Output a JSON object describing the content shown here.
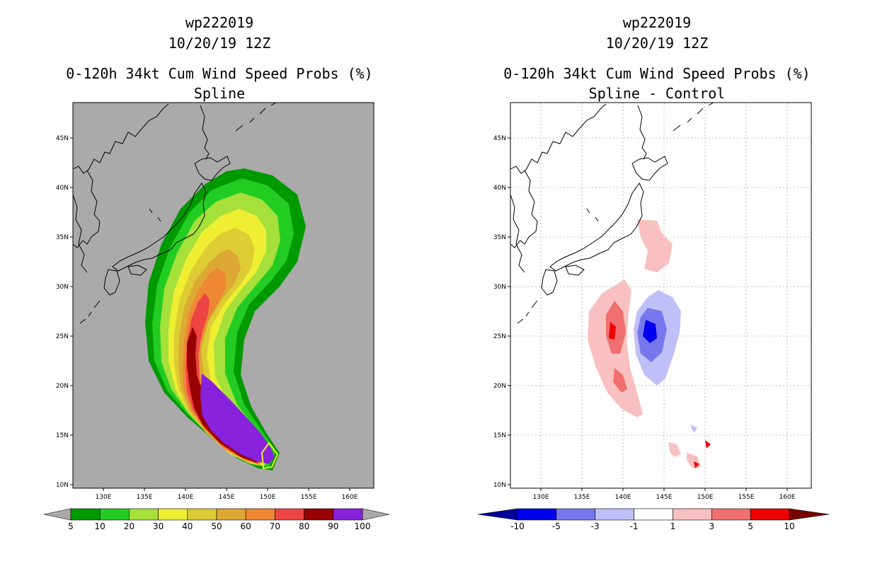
{
  "left_panel": {
    "title_line1": "wp222019",
    "title_line2": "10/20/19 12Z",
    "title_line3": "0-120h 34kt Cum Wind Speed Probs (%)",
    "title_line4": "Spline"
  },
  "right_panel": {
    "title_line1": "wp222019",
    "title_line2": "10/20/19 12Z",
    "title_line3": "0-120h 34kt Cum Wind Speed Probs (%)",
    "title_line4": "Spline - Control"
  },
  "axes": {
    "lat_labels": [
      "45N",
      "40N",
      "35N",
      "30N",
      "25N",
      "20N",
      "15N",
      "10N"
    ],
    "lon_labels": [
      "130E",
      "135E",
      "140E",
      "145E",
      "150E",
      "155E",
      "160E"
    ]
  },
  "left_colorbar": {
    "labels": [
      "5",
      "10",
      "20",
      "30",
      "40",
      "50",
      "60",
      "70",
      "80",
      "90",
      "100"
    ],
    "colors": [
      "#009900",
      "#22cc22",
      "#a6e03a",
      "#eeee33",
      "#ddcc33",
      "#dda833",
      "#ee8833",
      "#ee4444",
      "#990000",
      "#8822dd"
    ]
  },
  "right_colorbar": {
    "labels": [
      "-10",
      "-5",
      "-3",
      "-1",
      "1",
      "3",
      "5",
      "10"
    ],
    "colors": [
      "#0000ee",
      "#7777ee",
      "#c0c0f8",
      "#ffffff",
      "#f8c0c0",
      "#f07070",
      "#ee0000"
    ]
  }
}
